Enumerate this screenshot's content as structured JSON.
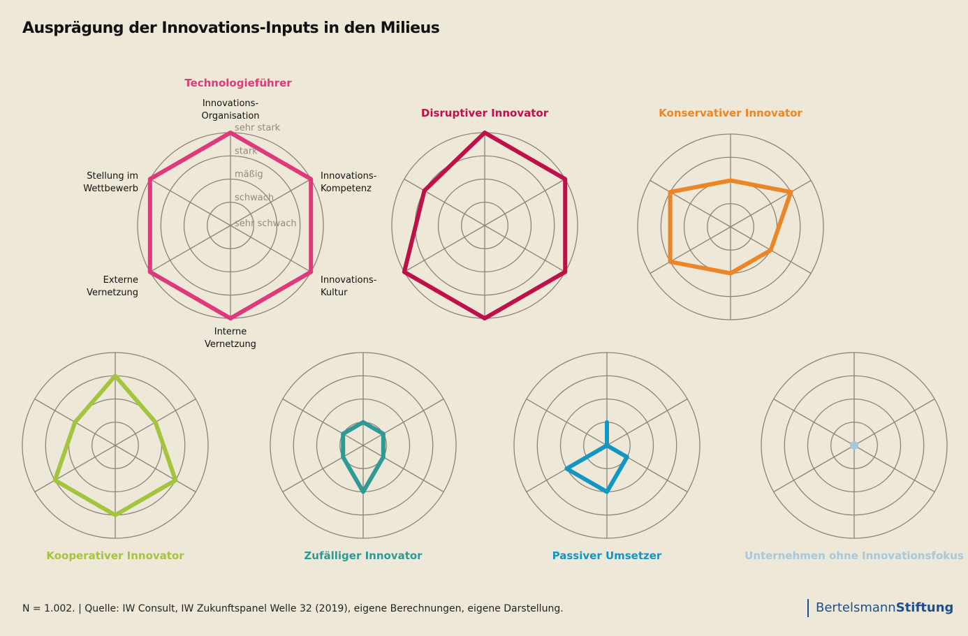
{
  "title": "Ausprägung der Innovations-Inputs in den Milieus",
  "footnote": "N = 1.002. | Quelle: IW Consult, IW Zukunftspanel Welle 32 (2019), eigene Berechnungen, eigene Darstellung.",
  "logo": {
    "part1": "Bertelsmann",
    "part2": "Stiftung"
  },
  "chart_data": {
    "type": "radar",
    "axes": [
      [
        "Innovations-",
        "Organisation"
      ],
      [
        "Innovations-",
        "Kompetenz"
      ],
      [
        "Innovations-",
        "Kultur"
      ],
      [
        "Interne",
        "Vernetzung"
      ],
      [
        "Externe",
        "Vernetzung"
      ],
      [
        "Stellung im",
        "Wettbewerb"
      ]
    ],
    "scale_labels": [
      "sehr schwach",
      "schwach",
      "mäßig",
      "stark",
      "sehr stark"
    ],
    "range": [
      0,
      4
    ],
    "series": [
      {
        "name": "Technologieführer",
        "color": "#e0397b",
        "values": [
          4,
          4,
          4,
          4,
          4,
          4
        ]
      },
      {
        "name": "Disruptiver Innovator",
        "color": "#c0104a",
        "values": [
          4,
          4,
          4,
          4,
          4,
          3
        ]
      },
      {
        "name": "Konservativer Innovator",
        "color": "#ec8526",
        "values": [
          2,
          3,
          2,
          2,
          3,
          3
        ]
      },
      {
        "name": "Kooperativer Innovator",
        "color": "#a3c43c",
        "values": [
          3,
          2,
          3,
          3,
          3,
          2
        ]
      },
      {
        "name": "Zufälliger Innovator",
        "color": "#2e9a95",
        "values": [
          1,
          1,
          1,
          2,
          1,
          1
        ]
      },
      {
        "name": "Passiver Umsetzer",
        "color": "#1296c4",
        "values": [
          1,
          0,
          1,
          2,
          2,
          0
        ]
      },
      {
        "name": "Unternehmen ohne Innovationsfokus",
        "color": "#a4c8dc",
        "values": [
          0,
          0,
          0,
          0,
          0,
          0
        ]
      }
    ]
  }
}
